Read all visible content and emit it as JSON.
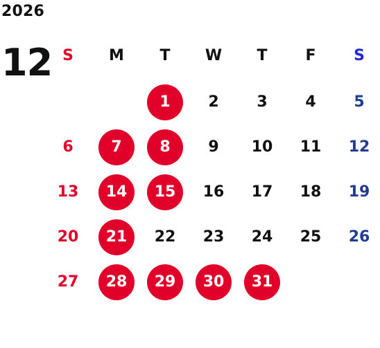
{
  "year": "2026",
  "month": "12",
  "colors": {
    "highlight": "#e0002a",
    "sunday": "#e0002a",
    "saturday": "#1f3d91",
    "saturday_header": "#1f28d8",
    "text": "#111111"
  },
  "weekdays": [
    "S",
    "M",
    "T",
    "W",
    "T",
    "F",
    "S"
  ],
  "weeks": [
    [
      null,
      null,
      "1",
      "2",
      "3",
      "4",
      "5"
    ],
    [
      "6",
      "7",
      "8",
      "9",
      "10",
      "11",
      "12"
    ],
    [
      "13",
      "14",
      "15",
      "16",
      "17",
      "18",
      "19"
    ],
    [
      "20",
      "21",
      "22",
      "23",
      "24",
      "25",
      "26"
    ],
    [
      "27",
      "28",
      "29",
      "30",
      "31",
      null,
      null
    ]
  ],
  "highlighted_days": [
    "1",
    "7",
    "8",
    "14",
    "15",
    "21",
    "28",
    "29",
    "30",
    "31"
  ]
}
